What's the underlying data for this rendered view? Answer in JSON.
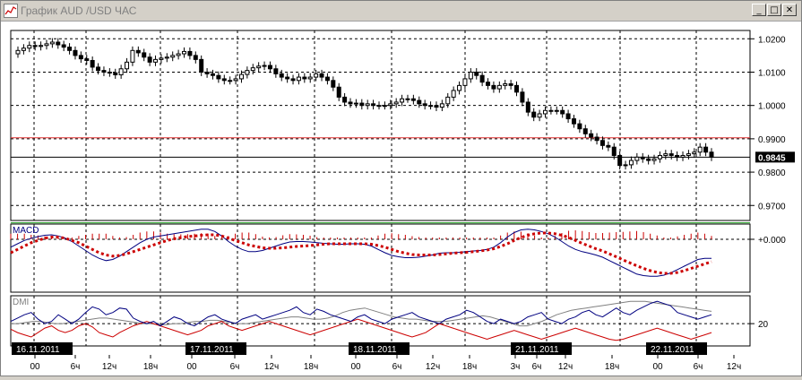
{
  "window": {
    "title": "График AUD /USD ЧАС",
    "buttons": {
      "minimize": "_",
      "maximize": "□",
      "close": "✕"
    }
  },
  "colors": {
    "bg": "#ffffff",
    "grid": "#000000",
    "candle": "#000000",
    "resistance_line": "#e03030",
    "support_line": "#20a020",
    "current_line": "#000000",
    "macd_line": "#000080",
    "macd_signal": "#cc0000",
    "macd_hist": "#cc0000",
    "dmi_plus": "#000080",
    "dmi_minus": "#cc0000",
    "adx": "#808080"
  },
  "price_panel": {
    "y_ticks": [
      "1.0200",
      "1.0100",
      "1.0000",
      "0.9900",
      "0.9800",
      "0.9700"
    ],
    "current_price": "0.9845",
    "resistance_level": 0.9903,
    "support_level": 0.9648
  },
  "macd_panel": {
    "label": "MACD",
    "zero_label": "+0.000"
  },
  "dmi_panel": {
    "label": "DMI",
    "level_label": "20"
  },
  "dates": [
    "16.11.2011",
    "17.11.2011",
    "18.11.2011",
    "21.11.2011",
    "22.11.2011"
  ],
  "hour_ticks": [
    "00",
    "6ч",
    "12ч",
    "18ч",
    "00",
    "6ч",
    "12ч",
    "18ч",
    "00",
    "6ч",
    "12ч",
    "18ч",
    "3ч",
    "6ч",
    "12ч",
    "18ч",
    "00",
    "6ч",
    "12ч"
  ],
  "chart_data": {
    "type": "candlestick",
    "close": [
      1.0165,
      1.0172,
      1.018,
      1.0177,
      1.018,
      1.0185,
      1.019,
      1.0182,
      1.0175,
      1.0165,
      1.015,
      1.014,
      1.0135,
      1.0115,
      1.0105,
      1.01,
      1.0098,
      1.0092,
      1.011,
      1.013,
      1.0165,
      1.0158,
      1.0145,
      1.013,
      1.0138,
      1.0142,
      1.0145,
      1.015,
      1.0155,
      1.0162,
      1.015,
      1.0138,
      1.01,
      1.0095,
      1.009,
      1.008,
      1.0075,
      1.0075,
      1.008,
      1.0093,
      1.0105,
      1.0113,
      1.0118,
      1.012,
      1.011,
      1.0095,
      1.0085,
      1.008,
      1.0075,
      1.0085,
      1.008,
      1.0085,
      1.0095,
      1.0085,
      1.0075,
      1.0055,
      1.0025,
      1.001,
      1.0005,
      1.0007,
      1.0,
      1.0005,
      1.0,
      1.0,
      1.0,
      1.0005,
      1.001,
      1.002,
      1.002,
      1.0015,
      1.0005,
      1.0,
      1.0,
      0.9995,
      1.0005,
      1.0025,
      1.0045,
      1.006,
      1.008,
      1.01,
      1.009,
      1.007,
      1.006,
      1.005,
      1.006,
      1.0065,
      1.006,
      1.004,
      1.001,
      0.998,
      0.9965,
      0.9975,
      0.9985,
      0.9985,
      0.9985,
      0.9975,
      0.996,
      0.9945,
      0.993,
      0.9915,
      0.9905,
      0.9895,
      0.988,
      0.9875,
      0.985,
      0.982,
      0.9822,
      0.9835,
      0.9845,
      0.984,
      0.9835,
      0.984,
      0.985,
      0.9855,
      0.985,
      0.9845,
      0.985,
      0.9855,
      0.986,
      0.9875,
      0.986,
      0.9845
    ],
    "y_range": [
      0.9655,
      1.0225
    ],
    "macd": [
      -0.35,
      -0.2,
      -0.05,
      0.05,
      0.12,
      0.18,
      0.2,
      0.15,
      0.05,
      -0.1,
      -0.3,
      -0.5,
      -0.7,
      -0.85,
      -0.95,
      -0.9,
      -0.75,
      -0.55,
      -0.35,
      -0.15,
      0.0,
      0.1,
      0.15,
      0.2,
      0.25,
      0.3,
      0.35,
      0.4,
      0.45,
      0.45,
      0.35,
      0.15,
      -0.1,
      -0.3,
      -0.45,
      -0.55,
      -0.55,
      -0.5,
      -0.4,
      -0.3,
      -0.2,
      -0.12,
      -0.1,
      -0.1,
      -0.12,
      -0.15,
      -0.18,
      -0.2,
      -0.22,
      -0.22,
      -0.2,
      -0.2,
      -0.22,
      -0.3,
      -0.45,
      -0.6,
      -0.72,
      -0.78,
      -0.82,
      -0.82,
      -0.8,
      -0.75,
      -0.7,
      -0.62,
      -0.6,
      -0.6,
      -0.58,
      -0.55,
      -0.52,
      -0.5,
      -0.45,
      -0.35,
      -0.15,
      0.1,
      0.3,
      0.42,
      0.45,
      0.42,
      0.35,
      0.25,
      0.1,
      -0.1,
      -0.3,
      -0.45,
      -0.55,
      -0.62,
      -0.7,
      -0.8,
      -0.95,
      -1.1,
      -1.25,
      -1.4,
      -1.55,
      -1.62,
      -1.65,
      -1.65,
      -1.6,
      -1.5,
      -1.35,
      -1.2,
      -1.05,
      -0.9,
      -0.85,
      -0.85
    ],
    "macd_signal": [
      -0.6,
      -0.45,
      -0.3,
      -0.15,
      -0.05,
      0.05,
      0.1,
      0.1,
      0.05,
      -0.05,
      -0.15,
      -0.3,
      -0.45,
      -0.6,
      -0.7,
      -0.75,
      -0.72,
      -0.65,
      -0.55,
      -0.45,
      -0.35,
      -0.25,
      -0.15,
      -0.05,
      0.02,
      0.08,
      0.12,
      0.15,
      0.18,
      0.2,
      0.2,
      0.15,
      0.05,
      -0.05,
      -0.15,
      -0.25,
      -0.32,
      -0.38,
      -0.4,
      -0.4,
      -0.38,
      -0.35,
      -0.32,
      -0.3,
      -0.28,
      -0.25,
      -0.22,
      -0.2,
      -0.2,
      -0.2,
      -0.2,
      -0.2,
      -0.2,
      -0.22,
      -0.28,
      -0.35,
      -0.45,
      -0.55,
      -0.62,
      -0.68,
      -0.7,
      -0.7,
      -0.7,
      -0.68,
      -0.65,
      -0.62,
      -0.6,
      -0.58,
      -0.55,
      -0.52,
      -0.48,
      -0.42,
      -0.32,
      -0.2,
      -0.05,
      0.08,
      0.18,
      0.25,
      0.28,
      0.28,
      0.25,
      0.18,
      0.08,
      -0.05,
      -0.18,
      -0.3,
      -0.42,
      -0.52,
      -0.65,
      -0.78,
      -0.92,
      -1.05,
      -1.18,
      -1.3,
      -1.4,
      -1.48,
      -1.52,
      -1.52,
      -1.48,
      -1.4,
      -1.3,
      -1.2,
      -1.1,
      -1.0
    ],
    "dmi_plus": [
      22,
      25,
      28,
      30,
      24,
      20,
      22,
      28,
      24,
      20,
      24,
      30,
      35,
      33,
      28,
      30,
      34,
      33,
      25,
      22,
      20,
      22,
      18,
      22,
      26,
      24,
      20,
      18,
      22,
      26,
      28,
      24,
      22,
      20,
      24,
      26,
      28,
      24,
      26,
      28,
      30,
      32,
      35,
      30,
      28,
      33,
      31,
      28,
      26,
      24,
      22,
      26,
      28,
      24,
      22,
      20,
      24,
      26,
      28,
      30,
      26,
      24,
      22,
      20,
      24,
      26,
      28,
      32,
      30,
      26,
      22,
      20,
      24,
      22,
      20,
      22,
      26,
      28,
      30,
      24,
      22,
      20,
      24,
      26,
      30,
      32,
      28,
      26,
      30,
      34,
      30,
      28,
      32,
      35,
      38,
      40,
      38,
      36,
      30,
      28,
      26,
      24,
      26,
      28
    ],
    "dmi_minus": [
      15,
      12,
      10,
      8,
      12,
      16,
      18,
      14,
      12,
      14,
      18,
      20,
      17,
      12,
      10,
      8,
      12,
      15,
      18,
      20,
      22,
      20,
      18,
      16,
      14,
      12,
      10,
      12,
      14,
      18,
      20,
      22,
      18,
      16,
      14,
      16,
      18,
      20,
      22,
      20,
      18,
      16,
      14,
      12,
      10,
      12,
      14,
      16,
      18,
      20,
      22,
      24,
      22,
      20,
      18,
      16,
      14,
      12,
      10,
      8,
      10,
      12,
      16,
      20,
      18,
      16,
      14,
      12,
      10,
      8,
      6,
      8,
      10,
      12,
      14,
      12,
      10,
      8,
      6,
      8,
      10,
      12,
      14,
      16,
      14,
      12,
      10,
      8,
      6,
      5,
      6,
      8,
      10,
      12,
      14,
      16,
      14,
      12,
      10,
      8,
      6,
      8,
      10,
      12
    ],
    "adx": [
      20,
      20,
      21,
      22,
      22,
      21,
      20,
      20,
      21,
      22,
      23,
      24,
      25,
      25,
      24,
      23,
      22,
      21,
      20,
      20,
      19,
      19,
      20,
      20,
      21,
      22,
      22,
      23,
      23,
      22,
      21,
      20,
      20,
      21,
      22,
      23,
      24,
      25,
      26,
      26,
      25,
      24,
      24,
      25,
      27,
      30,
      32,
      33,
      34,
      32,
      30,
      28,
      26,
      25,
      24,
      24,
      23,
      22,
      22,
      22,
      23,
      24,
      25,
      26,
      27,
      26,
      24,
      22,
      20,
      18,
      18,
      20,
      22,
      25,
      28,
      30,
      32,
      33,
      34,
      35,
      36,
      37,
      38,
      39,
      40,
      40,
      40,
      39,
      38,
      37,
      36,
      35,
      34,
      33,
      32,
      31
    ]
  }
}
